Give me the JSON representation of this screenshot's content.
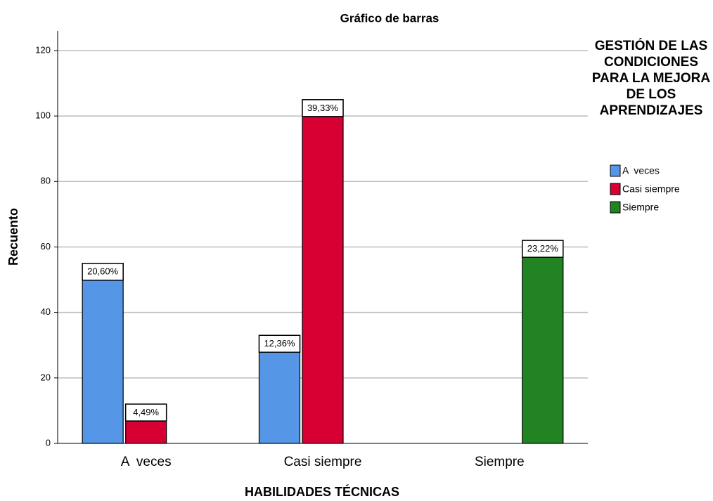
{
  "chart_data": {
    "type": "bar",
    "title": "Gráfico de barras",
    "x_label": "HABILIDADES TÉCNICAS",
    "y_label": "Recuento",
    "legend_title": "GESTIÓN DE LAS CONDICIONES PARA LA MEJORA DE LOS APRENDIZAJES",
    "categories": [
      "A  veces",
      "Casi siempre",
      "Siempre"
    ],
    "series": [
      {
        "name": "A  veces",
        "color": "#5596e6",
        "values": [
          55,
          33,
          null
        ],
        "value_labels": [
          "20,60%",
          "12,36%",
          null
        ]
      },
      {
        "name": "Casi siempre",
        "color": "#d60032",
        "values": [
          12,
          105,
          null
        ],
        "value_labels": [
          "4,49%",
          "39,33%",
          null
        ]
      },
      {
        "name": "Siempre",
        "color": "#218321",
        "values": [
          null,
          null,
          62
        ],
        "value_labels": [
          null,
          null,
          "23,22%"
        ]
      }
    ],
    "ylim": [
      0,
      126
    ],
    "yticks": [
      0,
      20,
      40,
      60,
      80,
      100,
      120
    ],
    "grid": true,
    "legend": "right"
  }
}
